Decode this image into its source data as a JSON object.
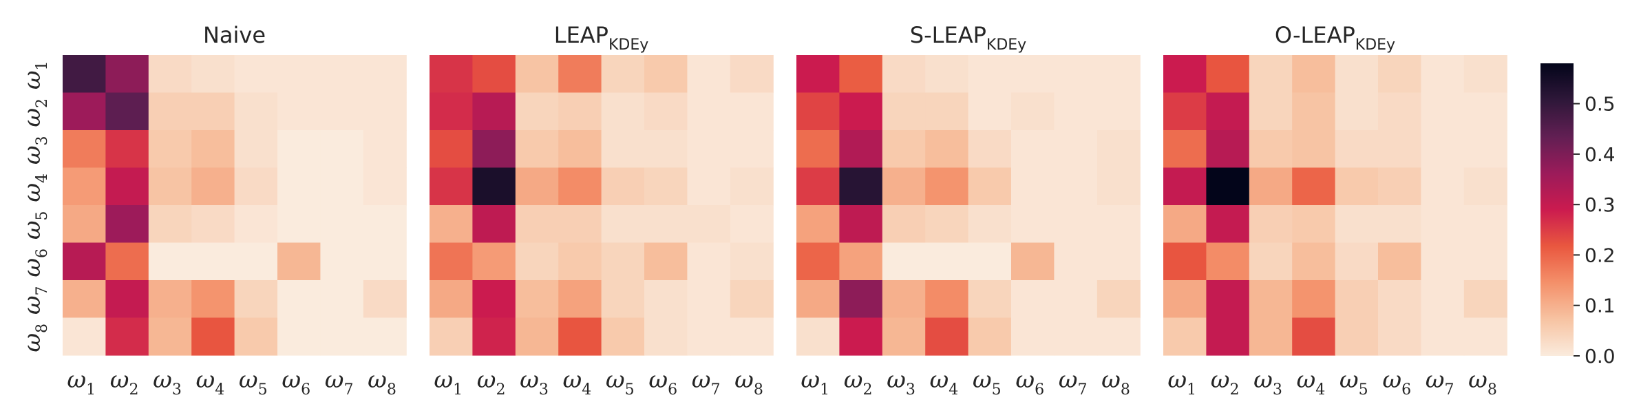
{
  "chart_data": {
    "type": "heatmap",
    "row_labels": [
      {
        "base": "ω",
        "sub": "1"
      },
      {
        "base": "ω",
        "sub": "2"
      },
      {
        "base": "ω",
        "sub": "3"
      },
      {
        "base": "ω",
        "sub": "4"
      },
      {
        "base": "ω",
        "sub": "5"
      },
      {
        "base": "ω",
        "sub": "6"
      },
      {
        "base": "ω",
        "sub": "7"
      },
      {
        "base": "ω",
        "sub": "8"
      }
    ],
    "col_labels": [
      {
        "base": "ω",
        "sub": "1"
      },
      {
        "base": "ω",
        "sub": "2"
      },
      {
        "base": "ω",
        "sub": "3"
      },
      {
        "base": "ω",
        "sub": "4"
      },
      {
        "base": "ω",
        "sub": "5"
      },
      {
        "base": "ω",
        "sub": "6"
      },
      {
        "base": "ω",
        "sub": "7"
      },
      {
        "base": "ω",
        "sub": "8"
      }
    ],
    "colorbar": {
      "min": 0.0,
      "max": 0.58,
      "ticks": [
        0.0,
        0.1,
        0.2,
        0.3,
        0.4,
        0.5
      ],
      "tick_labels": [
        "0.0",
        "0.1",
        "0.2",
        "0.3",
        "0.4",
        "0.5"
      ]
    },
    "colormap": [
      "#faebdd",
      "#f7c3a2",
      "#f4906a",
      "#e9573f",
      "#cb1b4f",
      "#9b1b5a",
      "#611f53",
      "#2e1739",
      "#03051a"
    ],
    "panels": [
      {
        "title": {
          "base": "Naive",
          "sub": ""
        },
        "values": [
          [
            0.48,
            0.38,
            0.03,
            0.02,
            0.01,
            0.01,
            0.01,
            0.01
          ],
          [
            0.36,
            0.44,
            0.05,
            0.05,
            0.02,
            0.01,
            0.01,
            0.01
          ],
          [
            0.17,
            0.26,
            0.06,
            0.08,
            0.02,
            0.0,
            0.0,
            0.01
          ],
          [
            0.13,
            0.3,
            0.07,
            0.1,
            0.03,
            0.0,
            0.0,
            0.01
          ],
          [
            0.11,
            0.36,
            0.04,
            0.03,
            0.01,
            0.0,
            0.0,
            0.0
          ],
          [
            0.32,
            0.19,
            0.0,
            0.0,
            0.0,
            0.09,
            0.0,
            0.0
          ],
          [
            0.1,
            0.3,
            0.1,
            0.14,
            0.04,
            0.0,
            0.0,
            0.03
          ],
          [
            0.01,
            0.27,
            0.09,
            0.22,
            0.06,
            0.0,
            0.0,
            0.0
          ]
        ]
      },
      {
        "title": {
          "base": "LEAP",
          "sub": "KDEy"
        },
        "values": [
          [
            0.26,
            0.23,
            0.07,
            0.17,
            0.04,
            0.06,
            0.01,
            0.03
          ],
          [
            0.27,
            0.32,
            0.04,
            0.05,
            0.02,
            0.03,
            0.01,
            0.01
          ],
          [
            0.23,
            0.38,
            0.06,
            0.08,
            0.02,
            0.02,
            0.01,
            0.01
          ],
          [
            0.26,
            0.54,
            0.11,
            0.15,
            0.05,
            0.04,
            0.01,
            0.02
          ],
          [
            0.1,
            0.31,
            0.05,
            0.05,
            0.02,
            0.02,
            0.02,
            0.01
          ],
          [
            0.18,
            0.13,
            0.04,
            0.06,
            0.04,
            0.08,
            0.01,
            0.02
          ],
          [
            0.11,
            0.29,
            0.08,
            0.12,
            0.04,
            0.02,
            0.01,
            0.04
          ],
          [
            0.05,
            0.28,
            0.09,
            0.22,
            0.06,
            0.02,
            0.01,
            0.01
          ]
        ]
      },
      {
        "title": {
          "base": "S-LEAP",
          "sub": "KDEy"
        },
        "values": [
          [
            0.29,
            0.21,
            0.03,
            0.02,
            0.01,
            0.01,
            0.01,
            0.01
          ],
          [
            0.24,
            0.29,
            0.04,
            0.04,
            0.01,
            0.02,
            0.01,
            0.01
          ],
          [
            0.19,
            0.33,
            0.06,
            0.08,
            0.03,
            0.01,
            0.01,
            0.02
          ],
          [
            0.25,
            0.52,
            0.1,
            0.14,
            0.06,
            0.01,
            0.01,
            0.02
          ],
          [
            0.12,
            0.31,
            0.05,
            0.04,
            0.02,
            0.01,
            0.01,
            0.01
          ],
          [
            0.2,
            0.12,
            0.0,
            0.0,
            0.0,
            0.09,
            0.01,
            0.01
          ],
          [
            0.11,
            0.38,
            0.1,
            0.15,
            0.04,
            0.01,
            0.01,
            0.04
          ],
          [
            0.02,
            0.29,
            0.09,
            0.23,
            0.06,
            0.01,
            0.01,
            0.01
          ]
        ]
      },
      {
        "title": {
          "base": "O-LEAP",
          "sub": "KDEy"
        },
        "values": [
          [
            0.29,
            0.22,
            0.04,
            0.08,
            0.02,
            0.04,
            0.01,
            0.02
          ],
          [
            0.25,
            0.3,
            0.04,
            0.07,
            0.02,
            0.03,
            0.01,
            0.01
          ],
          [
            0.19,
            0.32,
            0.06,
            0.07,
            0.03,
            0.03,
            0.01,
            0.01
          ],
          [
            0.3,
            0.58,
            0.11,
            0.2,
            0.06,
            0.05,
            0.01,
            0.02
          ],
          [
            0.11,
            0.3,
            0.05,
            0.06,
            0.02,
            0.02,
            0.01,
            0.01
          ],
          [
            0.22,
            0.15,
            0.04,
            0.08,
            0.03,
            0.08,
            0.01,
            0.01
          ],
          [
            0.11,
            0.3,
            0.09,
            0.14,
            0.05,
            0.03,
            0.01,
            0.04
          ],
          [
            0.06,
            0.3,
            0.09,
            0.23,
            0.05,
            0.03,
            0.01,
            0.01
          ]
        ]
      }
    ]
  }
}
